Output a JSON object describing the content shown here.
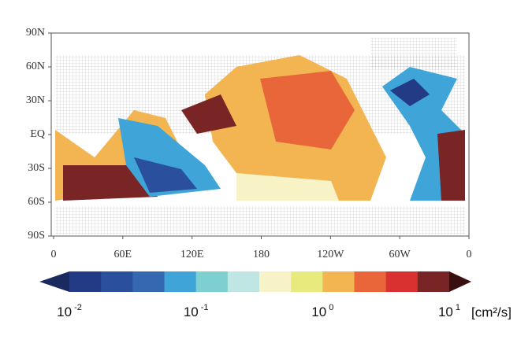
{
  "map": {
    "lat_labels": [
      "90N",
      "60N",
      "30N",
      "EQ",
      "30S",
      "60S",
      "90S"
    ],
    "lon_labels": [
      "0",
      "60E",
      "120E",
      "180",
      "120W",
      "60W",
      "0"
    ],
    "colorbar": {
      "under_color": "#1a2a5e",
      "colors": [
        "#233a85",
        "#2a4f9c",
        "#3468b0",
        "#3fa5d8",
        "#7ecfd0",
        "#bfe6e3",
        "#f7f3c6",
        "#e9ea7d",
        "#f3b552",
        "#e8663a",
        "#d93030",
        "#7a2525"
      ],
      "over_color": "#3b0f0f",
      "labels": [
        {
          "base": "10",
          "exp": "-2"
        },
        {
          "base": "10",
          "exp": "-1"
        },
        {
          "base": "10",
          "exp": "0"
        },
        {
          "base": "10",
          "exp": "1"
        }
      ],
      "unit": "[cm²/s]"
    }
  }
}
